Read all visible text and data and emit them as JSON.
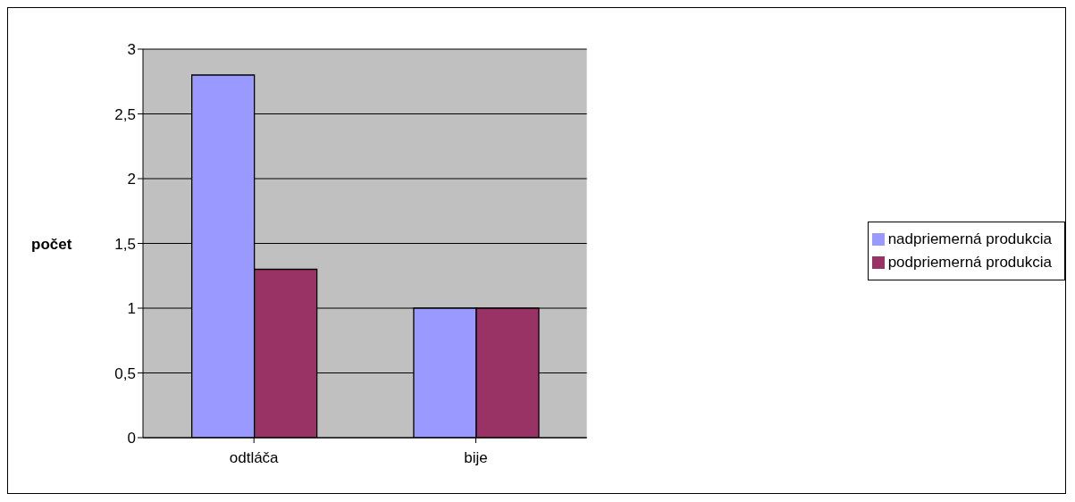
{
  "chart_data": {
    "type": "bar",
    "ylabel": "počet",
    "categories": [
      "odtláča",
      "bije"
    ],
    "series": [
      {
        "name": "nadpriemerná produkcia",
        "color": "#9999ff",
        "values": [
          2.8,
          1
        ]
      },
      {
        "name": "podpriemerná produkcia",
        "color": "#993366",
        "values": [
          1.3,
          1
        ]
      }
    ],
    "ylim": [
      0,
      3
    ],
    "yticks": [
      0,
      {
        "value": 0.5,
        "label": "0,5"
      },
      1,
      {
        "value": 1.5,
        "label": "1,5"
      },
      2,
      {
        "value": 2.5,
        "label": "2,5"
      },
      3
    ],
    "grid": "y",
    "legend": "right"
  }
}
